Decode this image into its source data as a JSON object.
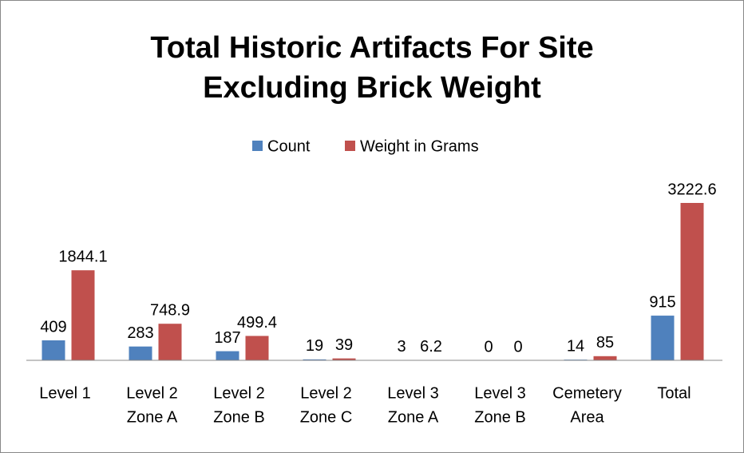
{
  "chart_data": {
    "type": "bar",
    "title": [
      "Total Historic Artifacts For Site",
      "Excluding Brick Weight"
    ],
    "categories": [
      [
        "Level 1"
      ],
      [
        "Level 2",
        "Zone A"
      ],
      [
        "Level 2",
        "Zone B"
      ],
      [
        "Level 2",
        "Zone C"
      ],
      [
        "Level 3",
        "Zone A"
      ],
      [
        "Level 3",
        "Zone B"
      ],
      [
        "Cemetery",
        "Area"
      ],
      [
        "Total"
      ]
    ],
    "series": [
      {
        "name": "Count",
        "color": "#4f81bd",
        "values": [
          409,
          283,
          187,
          19,
          3,
          0,
          14,
          915
        ]
      },
      {
        "name": "Weight in Grams",
        "color": "#c0504d",
        "values": [
          1844.1,
          748.9,
          499.4,
          39,
          6.2,
          0,
          85,
          3222.6
        ]
      }
    ],
    "legend": "top"
  }
}
